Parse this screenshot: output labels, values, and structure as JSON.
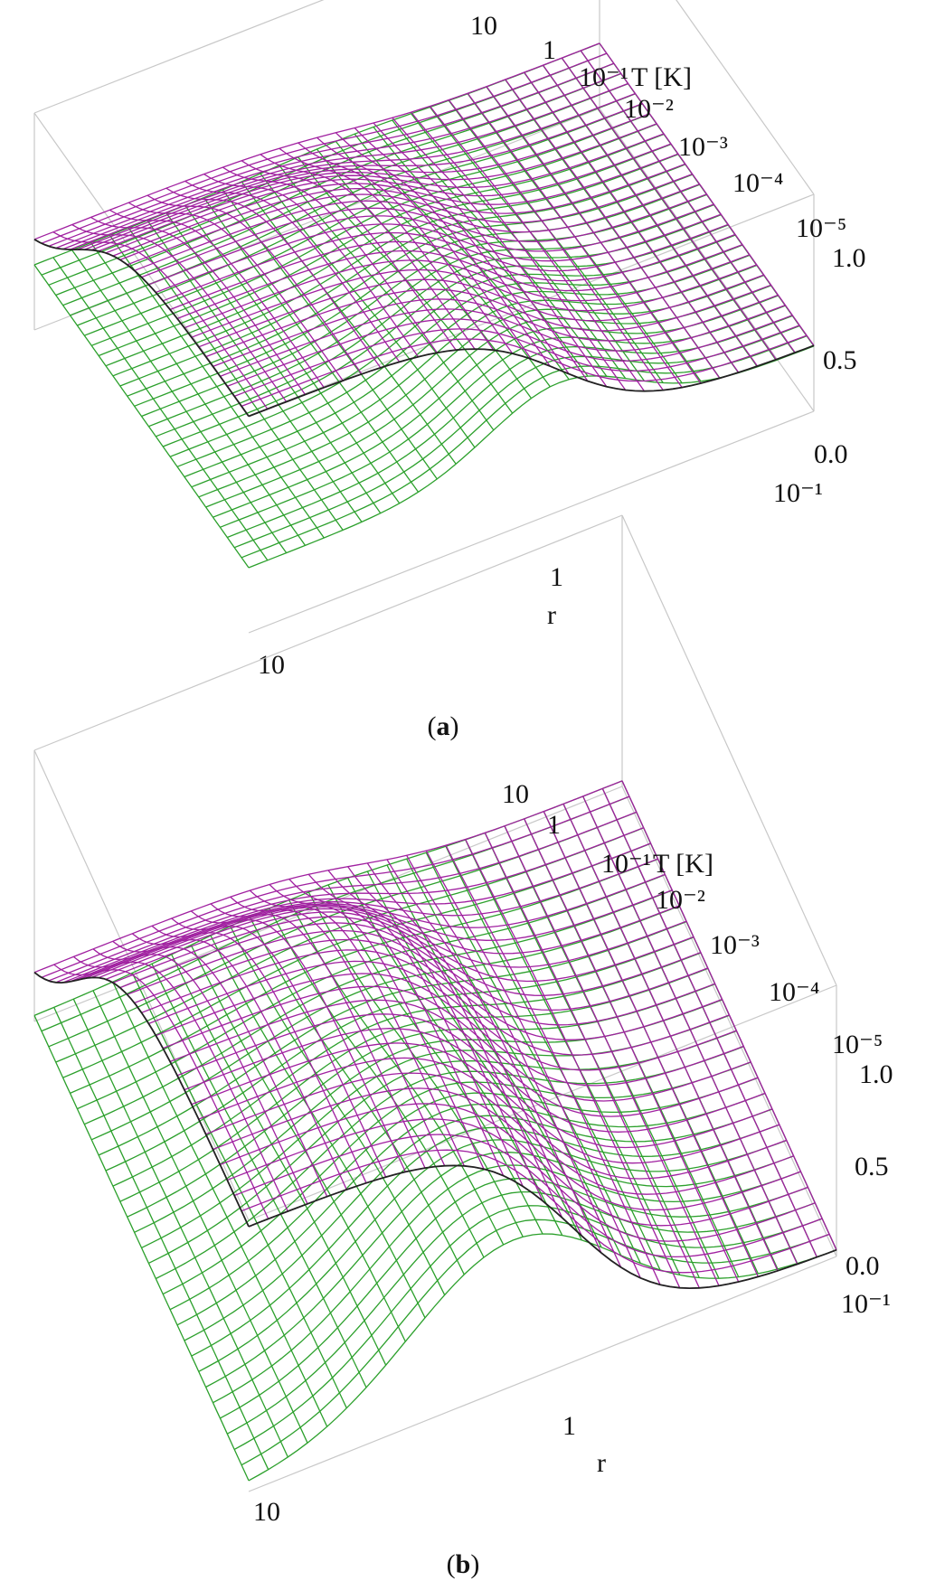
{
  "chart_data": [
    {
      "panel": "a",
      "type": "surface",
      "caption_letter": "a",
      "x_axis": {
        "label": "r",
        "scale": "log",
        "ticks": [
          "10",
          "1",
          "10⁻¹"
        ]
      },
      "y_axis": {
        "label": "T [K]",
        "scale": "log",
        "ticks": [
          "10",
          "1",
          "10⁻¹",
          "10⁻²",
          "10⁻³",
          "10⁻⁴",
          "10⁻⁵"
        ]
      },
      "z_axis": {
        "ticks": [
          "1.0",
          "0.5",
          "0.0"
        ],
        "range": [
          0,
          1
        ]
      },
      "surfaces": [
        {
          "color": "#a020a0",
          "description_of_shape": "plateau near 1.0 at small r and low T, decaying to ~0.3 at large r"
        },
        {
          "color": "#2ca02c",
          "description_of_shape": "ridge up to ~0.6 around r~1 at low T, ~0.3 elsewhere"
        }
      ],
      "box": true,
      "grid": false
    },
    {
      "panel": "b",
      "type": "surface",
      "caption_letter": "b",
      "x_axis": {
        "label": "r",
        "scale": "log",
        "ticks": [
          "10",
          "1",
          "10⁻¹"
        ]
      },
      "y_axis": {
        "label": "T [K]",
        "scale": "log",
        "ticks": [
          "10",
          "1",
          "10⁻¹",
          "10⁻²",
          "10⁻³",
          "10⁻⁴",
          "10⁻⁵"
        ]
      },
      "z_axis": {
        "ticks": [
          "1.0",
          "0.5",
          "0.0"
        ],
        "range": [
          0,
          1
        ]
      },
      "surfaces": [
        {
          "color": "#a020a0",
          "description_of_shape": "plateau near 1.0 at small r and low T, decaying toward 0 at large r"
        },
        {
          "color": "#2ca02c",
          "description_of_shape": "broad bump up to ~0.6 at small r, flat near 0 elsewhere"
        }
      ],
      "box": true,
      "grid": false
    }
  ]
}
